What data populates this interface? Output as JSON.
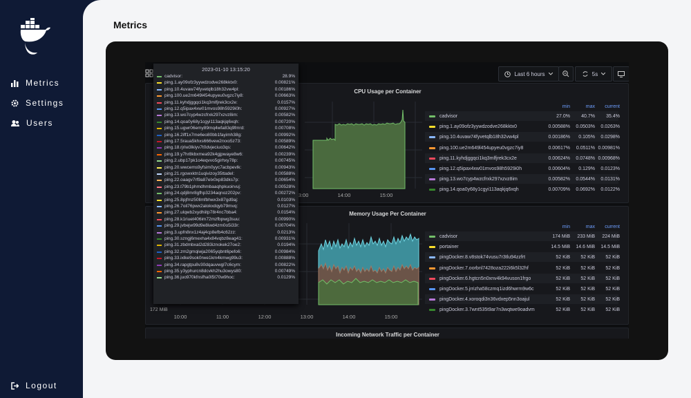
{
  "sidebar": {
    "nav": [
      {
        "label": "Metrics"
      },
      {
        "label": "Settings"
      },
      {
        "label": "Users"
      }
    ],
    "logout": "Logout"
  },
  "page_title": "Metrics",
  "toolbar": {
    "time_range": "Last 6 hours",
    "refresh": "5s"
  },
  "tooltip": {
    "timestamp": "2023-01-10 13:15:20",
    "rows": [
      {
        "name": "cadvisor:",
        "value": "28.9%",
        "color": "#73bf69"
      },
      {
        "name": "ping.1.ay09ofz3yywdzodve268kktx0:",
        "value": "0.00821%",
        "color": "#fade2a"
      },
      {
        "name": "ping.10.4uvaw74fyvetqlb18h32vw4pl:",
        "value": "0.00186%",
        "color": "#8ab8ff"
      },
      {
        "name": "ping.100.ue2m649l454upyeu0vgzc7iy8:",
        "value": "0.00663%",
        "color": "#ff9830"
      },
      {
        "name": "ping.11.kyhdjggqci1kq3mlfjrek3cx2e:",
        "value": "0.0157%",
        "color": "#f2495c"
      },
      {
        "name": "ping.12.q5ipax4xw01mvos98h5929i0h:",
        "value": "0.00927%",
        "color": "#5794f2"
      },
      {
        "name": "ping.13.wo7cyp4wzcfrxk297xzvz8im:",
        "value": "0.00582%",
        "color": "#b877d9"
      },
      {
        "name": "ping.14.qoa0y68y1cgyi113aqkjq6xqh:",
        "value": "0.00720%",
        "color": "#37872d"
      },
      {
        "name": "ping.15.ugwr06emy89mq4wfa83q9fmrd:",
        "value": "0.00708%",
        "color": "#e0b400"
      },
      {
        "name": "ping.16.2iff1x7me6eo80bb1fayimh38g:",
        "value": "0.00992%",
        "color": "#1f60c4"
      },
      {
        "name": "ping.17.5raua5khxs666vew2rxxo5z73:",
        "value": "0.00589%",
        "color": "#c4162a"
      },
      {
        "name": "ping.18.rjriw3lkiyv7t0dvjeciuo3qs:",
        "value": "0.00642%",
        "color": "#8f3bb8"
      },
      {
        "name": "ping.19.y7hr8kbxmea92k4gjpwaye8w6:",
        "value": "0.00239%",
        "color": "#fa6400"
      },
      {
        "name": "ping.2.ubp17pk1o4eqvvo5girhxy78p:",
        "value": "0.00745%",
        "color": "#96d98d"
      },
      {
        "name": "ping.20.wwcems9yfsim0yyc7acbpevlk:",
        "value": "0.00943%",
        "color": "#ffee52"
      },
      {
        "name": "ping.21.rgowxktn1uqivizoy35ttadel:",
        "value": "0.00588%",
        "color": "#c0d8ff"
      },
      {
        "name": "ping.22.oaagv7rf9a87elx0xp83dks7p:",
        "value": "0.00654%",
        "color": "#ffb357"
      },
      {
        "name": "ping.23.t79b1phmdhmbaaqhpkuoirvuj:",
        "value": "0.00528%",
        "color": "#ff7383"
      },
      {
        "name": "ping.24.qdj8mr8gfhp3234aqnoz202pv:",
        "value": "0.00272%",
        "color": "#73bf69"
      },
      {
        "name": "ping.25.8pjfmz50llmfbhwx3x87gd9aj:",
        "value": "0.0103%",
        "color": "#fade2a"
      },
      {
        "name": "ping.26.7oil76pwx2alokxdqyb79mvq:",
        "value": "0.0127%",
        "color": "#8ab8ff"
      },
      {
        "name": "ping.27.ulqwb2xydhiitp78r4nc7bba4:",
        "value": "0.0154%",
        "color": "#ff9830"
      },
      {
        "name": "ping.28.k1riuet406im72mzfbpwg3suu:",
        "value": "0.00990%",
        "color": "#f2495c"
      },
      {
        "name": "ping.29.jvbejw99d9e8iwd4zm0o5i33r:",
        "value": "0.00704%",
        "color": "#5794f2"
      },
      {
        "name": "ping.3.upfn8nx1z4aj4cp8efb4c62zz:",
        "value": "0.0213%",
        "color": "#b877d9"
      },
      {
        "name": "ping.30.szngj6mexha4x84vqbz8eag41:",
        "value": "0.00931%",
        "color": "#37872d"
      },
      {
        "name": "ping.31.zbdmbxal2d283iznokek27oe2:",
        "value": "0.0194%",
        "color": "#e0b400"
      },
      {
        "name": "ping.32.zm2gmqiwja2065yqbnt6pefo6:",
        "value": "0.00984%",
        "color": "#1f60c4"
      },
      {
        "name": "ping.33.ixlke9sok0rwe1km4kmwg99u3:",
        "value": "0.00888%",
        "color": "#c4162a"
      },
      {
        "name": "ping.34.rapgtpu8v30dqauvwgl7c6cym:",
        "value": "0.00822%",
        "color": "#8f3bb8"
      },
      {
        "name": "ping.35.y3yphurcn8dcvkh2hu3owys80:",
        "value": "0.00749%",
        "color": "#fa6400"
      },
      {
        "name": "ping.36.juo970kfnsfha0l5t70w9hoc:",
        "value": "0.0129%",
        "color": "#96d98d"
      }
    ]
  },
  "panels": [
    {
      "title": "CPU Usage per Container",
      "legend_headers": [
        "min",
        "max",
        "current"
      ],
      "x_labels": [
        "13:00",
        "14:00",
        "15:00"
      ],
      "rows": [
        {
          "name": "cadvisor",
          "color": "#73bf69",
          "min": "27.0%",
          "max": "40.7%",
          "current": "35.4%"
        },
        {
          "name": "ping.1.ay09ofz3yywdzodve268kktx0",
          "color": "#fade2a",
          "min": "0.00588%",
          "max": "0.0503%",
          "current": "0.0263%"
        },
        {
          "name": "ping.10.4uvaw74fyvetqlb18h32vw4pl",
          "color": "#8ab8ff",
          "min": "0.00186%",
          "max": "0.105%",
          "current": "0.0298%"
        },
        {
          "name": "ping.100.ue2m649l454upyeu0vgzc7iy8",
          "color": "#ff9830",
          "min": "0.00617%",
          "max": "0.0511%",
          "current": "0.00981%"
        },
        {
          "name": "ping.11.kyhdjggqci1kq3mlfjrek3cx2e",
          "color": "#f2495c",
          "min": "0.00624%",
          "max": "0.0748%",
          "current": "0.00968%"
        },
        {
          "name": "ping.12.q5ipax4xw01mvos98h5929i0h",
          "color": "#5794f2",
          "min": "0.00604%",
          "max": "0.129%",
          "current": "0.0123%"
        },
        {
          "name": "ping.13.wo7cyp4wzcfrxk297xzvz8im",
          "color": "#b877d9",
          "min": "0.00582%",
          "max": "0.0544%",
          "current": "0.0131%"
        },
        {
          "name": "ping.14.qoa0y68y1cgyi113aqkjq6xqh",
          "color": "#37872d",
          "min": "0.00709%",
          "max": "0.0692%",
          "current": "0.0122%"
        }
      ]
    },
    {
      "title": "Memory Usage Per Container",
      "legend_headers": [
        "min",
        "max",
        "current"
      ],
      "y_label": "172 MiB",
      "x_labels": [
        "10:00",
        "11:00",
        "12:00",
        "13:00",
        "14:00",
        "15:00"
      ],
      "rows": [
        {
          "name": "cadvisor",
          "color": "#73bf69",
          "min": "174 MiB",
          "max": "233 MiB",
          "current": "224 MiB"
        },
        {
          "name": "portainer",
          "color": "#fade2a",
          "min": "14.5 MiB",
          "max": "14.6 MiB",
          "current": "14.5 MiB"
        },
        {
          "name": "pingDocker.8.v8stok74vusu7r3tlu94zzfrt",
          "color": "#8ab8ff",
          "min": "52 KiB",
          "max": "52 KiB",
          "current": "52 KiB"
        },
        {
          "name": "pingDocker.7.oorbnl7428oza222i6k5l32hf",
          "color": "#ff9830",
          "min": "52 KiB",
          "max": "52 KiB",
          "current": "52 KiB"
        },
        {
          "name": "pingDocker.6.hgtcn5n0xnv4k94vuson1frgo",
          "color": "#f2495c",
          "min": "52 KiB",
          "max": "52 KiB",
          "current": "52 KiB"
        },
        {
          "name": "pingDocker.5.jrrizha58czmq1izd6hwrm9w6c",
          "color": "#5794f2",
          "min": "52 KiB",
          "max": "52 KiB",
          "current": "52 KiB"
        },
        {
          "name": "pingDocker.4.xoroqdi3n36vdxep5nn3oajul",
          "color": "#b877d9",
          "min": "52 KiB",
          "max": "52 KiB",
          "current": "52 KiB"
        },
        {
          "name": "pingDocker.3.7wnt535t9ar7n3wqtwe9oadvm",
          "color": "#37872d",
          "min": "52 KiB",
          "max": "52 KiB",
          "current": "52 KiB"
        }
      ]
    },
    {
      "title": "Incoming Network Traffic per Container"
    }
  ]
}
